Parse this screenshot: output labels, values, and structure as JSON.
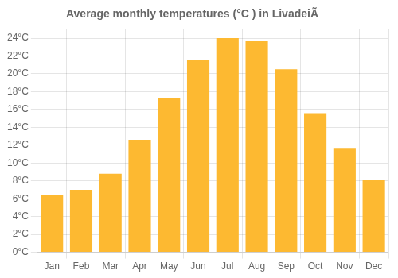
{
  "chart_data": {
    "type": "bar",
    "title": "Average monthly temperatures (°C ) in LivadeiÃ",
    "categories": [
      "Jan",
      "Feb",
      "Mar",
      "Apr",
      "May",
      "Jun",
      "Jul",
      "Aug",
      "Sep",
      "Oct",
      "Nov",
      "Dec"
    ],
    "values": [
      6.4,
      7.0,
      8.8,
      12.6,
      17.3,
      21.5,
      24.0,
      23.7,
      20.5,
      15.6,
      11.7,
      8.1
    ],
    "color": "#FDB931",
    "ylim": [
      0,
      25
    ],
    "yticks": [
      {
        "value": 0,
        "label": "0°C"
      },
      {
        "value": 2,
        "label": "2°C"
      },
      {
        "value": 4,
        "label": "4°C"
      },
      {
        "value": 6,
        "label": "6°C"
      },
      {
        "value": 8,
        "label": "8°C"
      },
      {
        "value": 10,
        "label": "10°C"
      },
      {
        "value": 12,
        "label": "12°C"
      },
      {
        "value": 14,
        "label": "14°C"
      },
      {
        "value": 16,
        "label": "16°C"
      },
      {
        "value": 18,
        "label": "18°C"
      },
      {
        "value": 20,
        "label": "20°C"
      },
      {
        "value": 22,
        "label": "22°C"
      },
      {
        "value": 24,
        "label": "24°C"
      }
    ],
    "grid": true
  }
}
